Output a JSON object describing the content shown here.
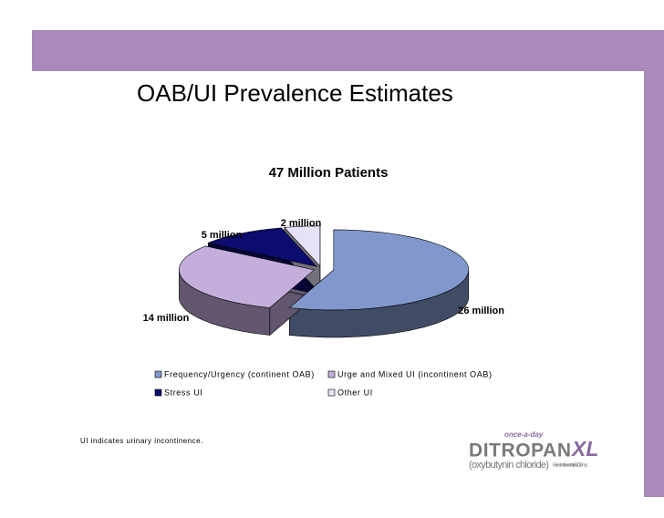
{
  "chart_data": {
    "type": "pie3d",
    "title": "OAB/UI Prevalence Estimates",
    "subtitle": "47 Million Patients",
    "categories": [
      "Frequency/Urgency (continent OAB)",
      "Urge and Mixed UI (incontinent OAB)",
      "Stress UI",
      "Other UI"
    ],
    "values": [
      26,
      14,
      5,
      2
    ],
    "value_labels": [
      "26 million",
      "14 million",
      "5 million",
      "2 million"
    ],
    "colors": [
      "#8098cc",
      "#c4aedc",
      "#0c0c6e",
      "#e6e0f8"
    ],
    "legend": "bottom"
  },
  "slide": {
    "footnote": "UI indicates urinary incontinence.",
    "logo": {
      "tagline": "once-a-day",
      "brand": "DITROPAN",
      "brand_suffix": "XL",
      "generic": "(oxybutynin chloride)",
      "form": "Extended-release tablets 5, 10, 15 mg"
    }
  }
}
